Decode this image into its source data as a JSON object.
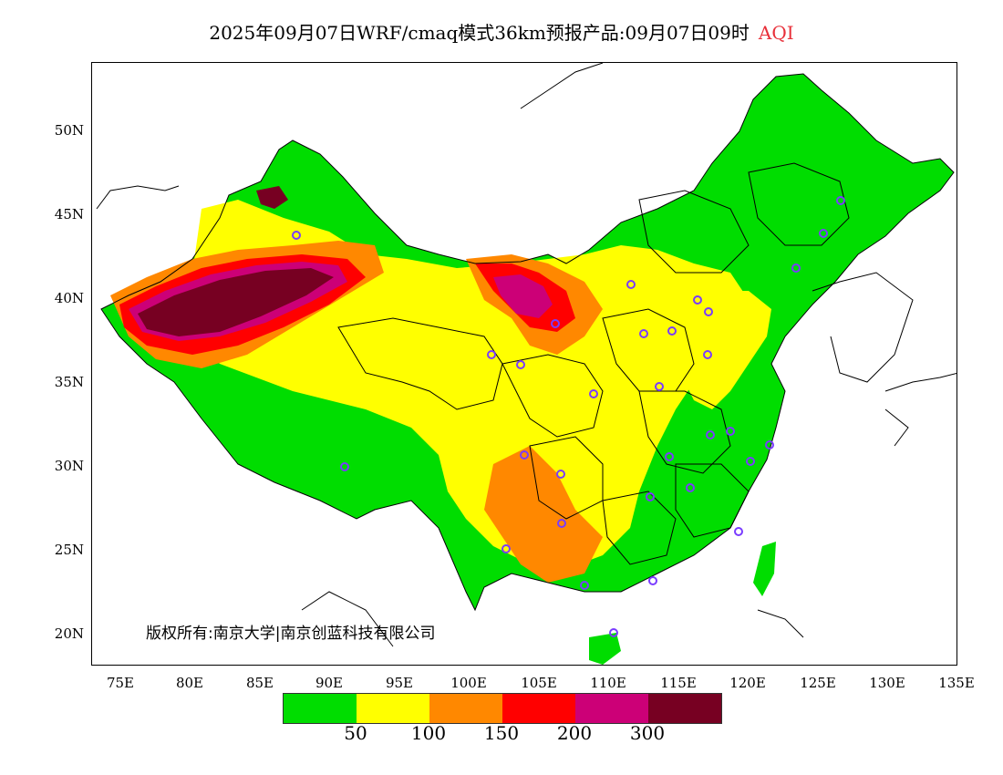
{
  "title": {
    "main": "2025年09月07日WRF/cmaq模式36km预报产品:09月07日09时",
    "variable": "AQI"
  },
  "axes": {
    "y_labels": [
      "50N",
      "45N",
      "40N",
      "35N",
      "30N",
      "25N",
      "20N"
    ],
    "x_labels": [
      "75E",
      "80E",
      "85E",
      "90E",
      "95E",
      "100E",
      "105E",
      "110E",
      "115E",
      "120E",
      "125E",
      "130E",
      "135E"
    ]
  },
  "copyright": "版权所有:南京大学|南京创蓝科技有限公司",
  "legend": {
    "colors": [
      "#00dd00",
      "#ffff00",
      "#ff8800",
      "#ff0000",
      "#cc0077",
      "#770022"
    ],
    "labels": [
      "50",
      "100",
      "150",
      "200",
      "300"
    ]
  },
  "stations_color": "#7a3cff"
}
